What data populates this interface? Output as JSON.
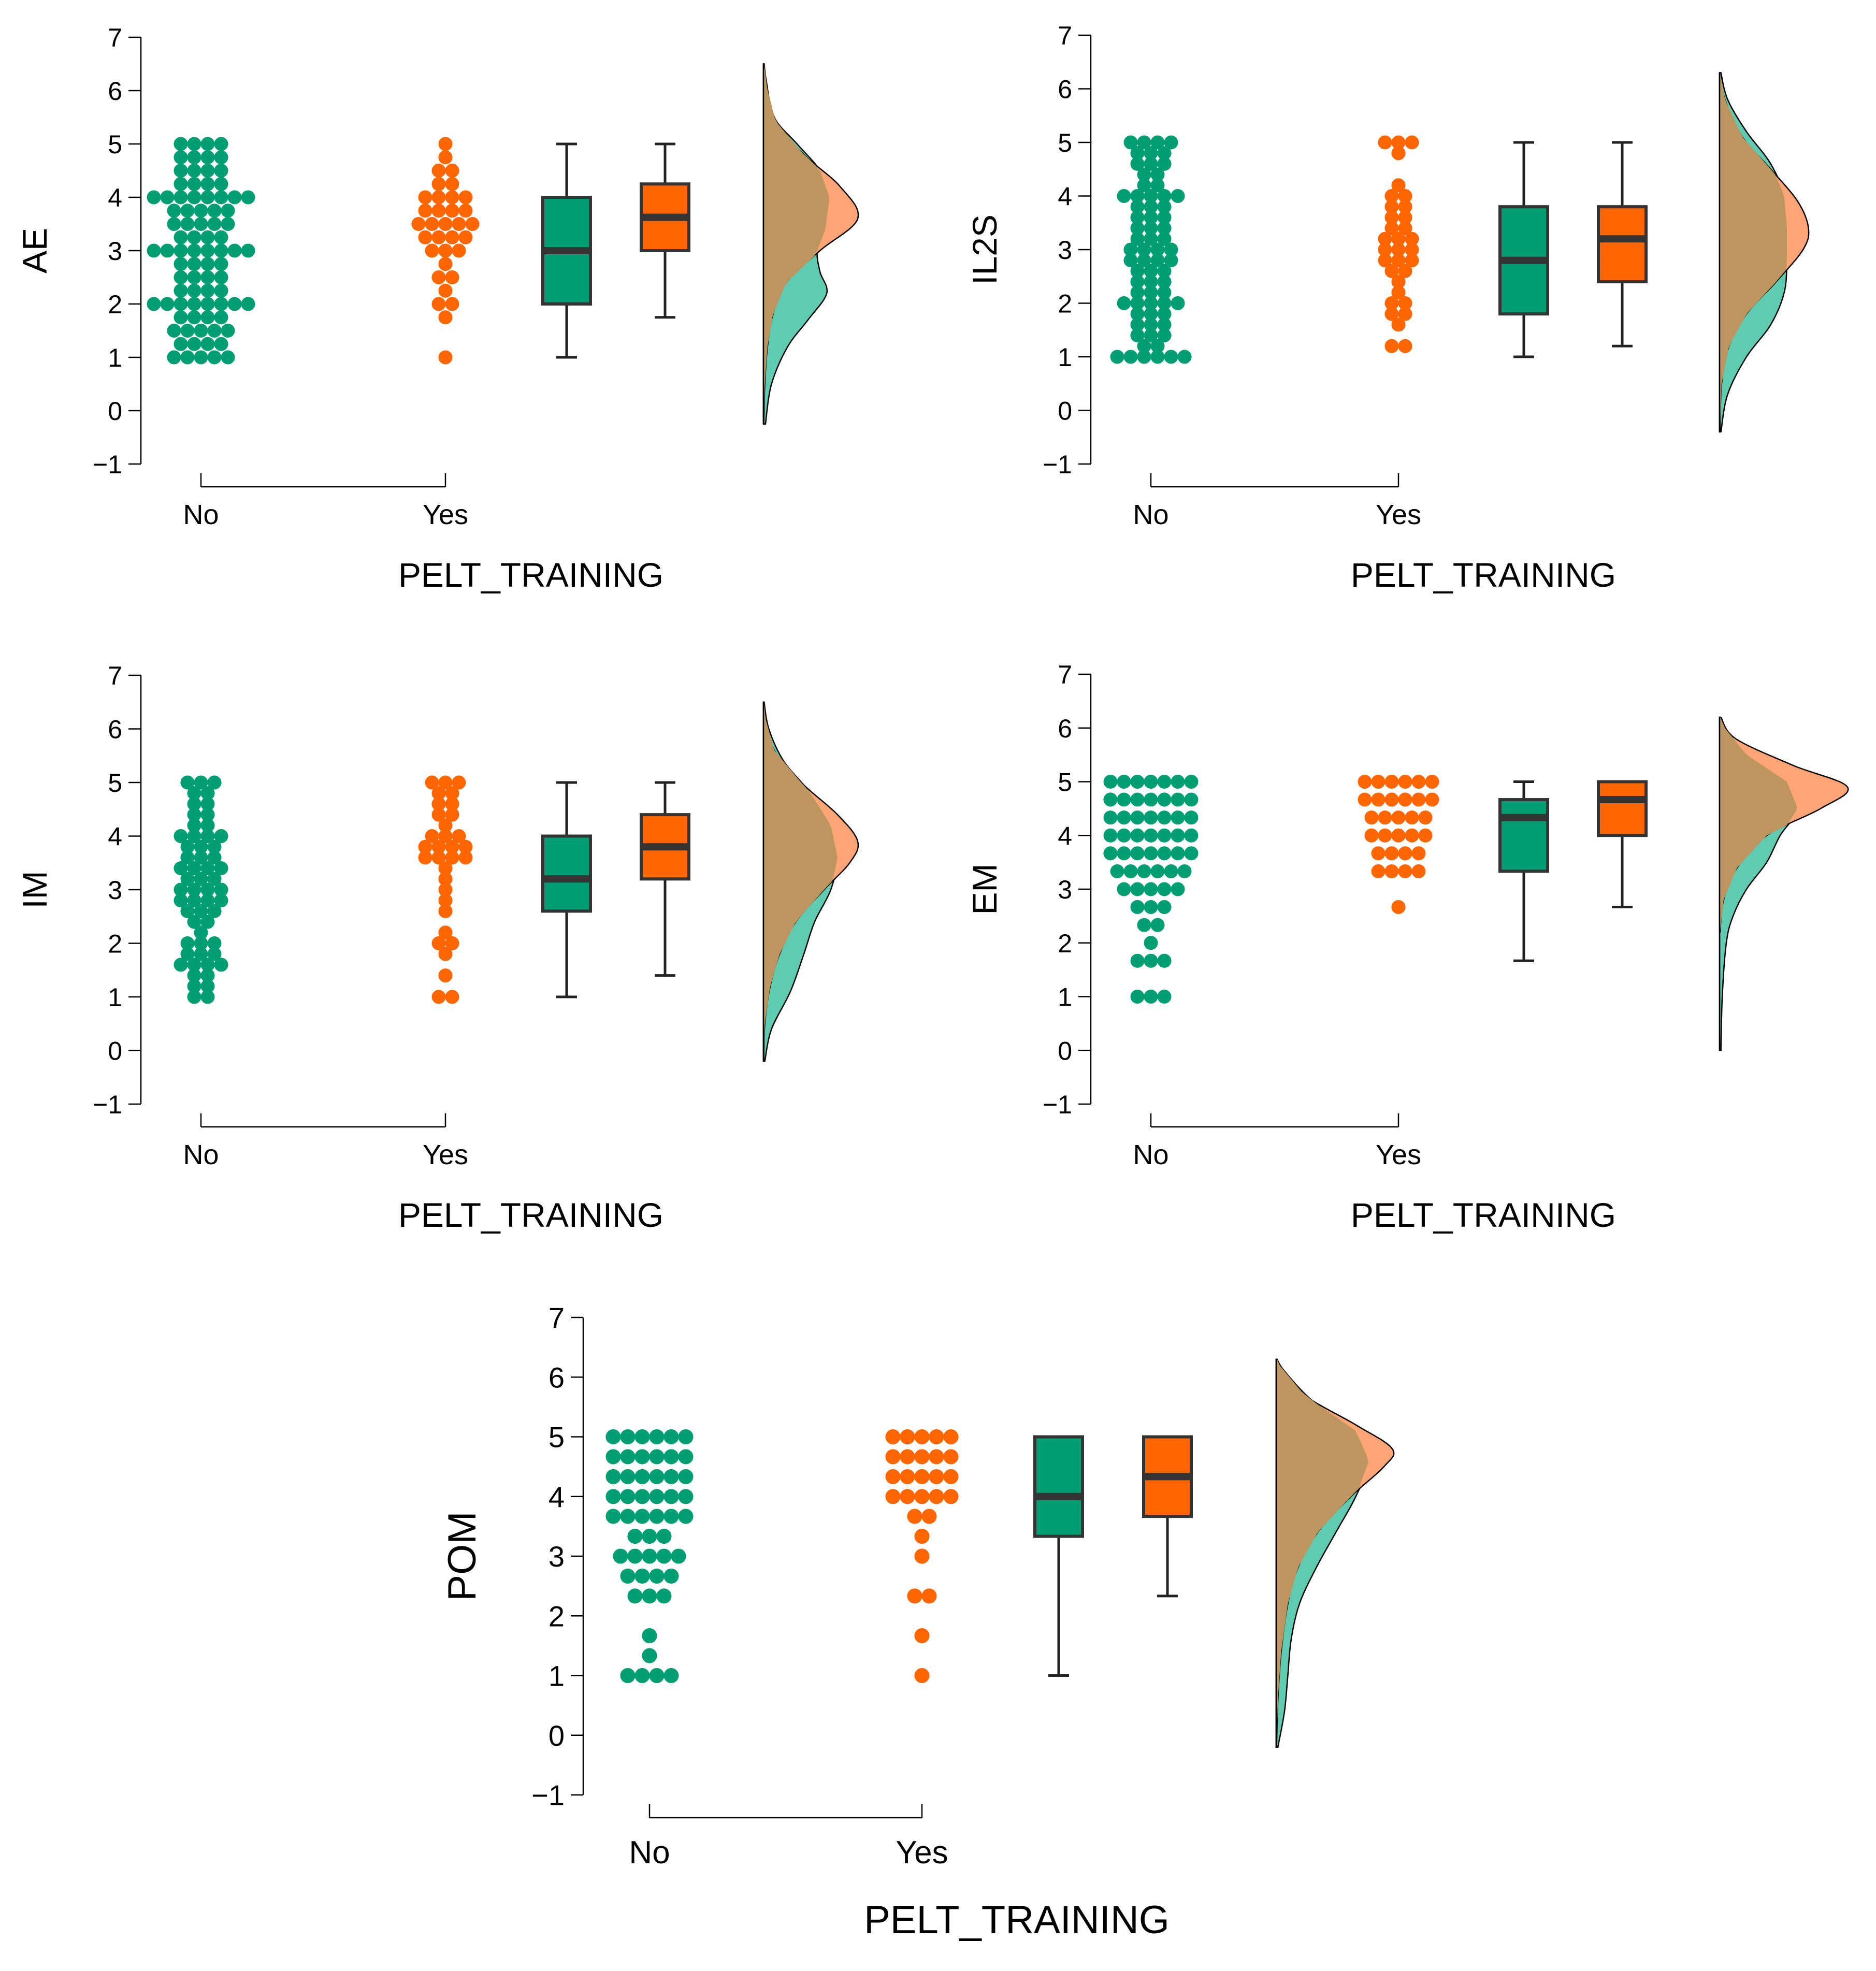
{
  "colors": {
    "no": "#009E73",
    "yes": "#FF6600",
    "no_density": "#5ECBB2",
    "yes_density": "#FFA474",
    "overlap": "#BC965E"
  },
  "chart_data": [
    {
      "type": "raincloud",
      "ylabel": "AE",
      "xlabel": "PELT_TRAINING",
      "categories": [
        "No",
        "Yes"
      ],
      "yticks": [
        -1,
        0,
        1,
        2,
        3,
        4,
        5,
        6,
        7
      ],
      "ylim": [
        -1,
        7
      ],
      "series": [
        {
          "name": "No",
          "points": [
            1,
            1,
            1,
            1,
            1,
            1.25,
            1.25,
            1.25,
            1.25,
            1.5,
            1.5,
            1.5,
            1.5,
            1.5,
            1.75,
            1.75,
            1.75,
            1.75,
            2,
            2,
            2,
            2,
            2,
            2,
            2,
            2,
            2.25,
            2.25,
            2.25,
            2.25,
            2.5,
            2.5,
            2.5,
            2.5,
            2.75,
            2.75,
            2.75,
            2.75,
            3,
            3,
            3,
            3,
            3,
            3,
            3,
            3,
            3.25,
            3.25,
            3.25,
            3.25,
            3.5,
            3.5,
            3.5,
            3.5,
            3.5,
            3.75,
            3.75,
            3.75,
            3.75,
            3.75,
            4,
            4,
            4,
            4,
            4,
            4,
            4,
            4,
            4.25,
            4.25,
            4.25,
            4.25,
            4.5,
            4.5,
            4.5,
            4.5,
            4.75,
            4.75,
            4.75,
            4.75,
            5,
            5,
            5,
            5
          ],
          "box": {
            "min": 1,
            "q1": 2,
            "median": 3,
            "q3": 4,
            "max": 5
          }
        },
        {
          "name": "Yes",
          "points": [
            1,
            1.75,
            2,
            2,
            2.25,
            2.5,
            2.5,
            2.75,
            3,
            3,
            3,
            3.25,
            3.25,
            3.25,
            3.25,
            3.5,
            3.5,
            3.5,
            3.5,
            3.5,
            3.75,
            3.75,
            3.75,
            3.75,
            4,
            4,
            4,
            4,
            4.25,
            4.25,
            4.5,
            4.5,
            4.75,
            5
          ],
          "box": {
            "min": 1.75,
            "q1": 3,
            "median": 3.625,
            "q3": 4.25,
            "max": 5
          }
        }
      ],
      "density": {
        "no": [
          [
            -0.25,
            0.015
          ],
          [
            0.5,
            0.06
          ],
          [
            1.2,
            0.18
          ],
          [
            1.7,
            0.33
          ],
          [
            2.2,
            0.47
          ],
          [
            2.6,
            0.42
          ],
          [
            3.0,
            0.4
          ],
          [
            3.4,
            0.46
          ],
          [
            4.0,
            0.49
          ],
          [
            4.5,
            0.42
          ],
          [
            5.0,
            0.25
          ],
          [
            5.5,
            0.08
          ],
          [
            6.2,
            0.02
          ],
          [
            6.5,
            0.004
          ]
        ],
        "yes": [
          [
            -0.25,
            0.002
          ],
          [
            0.5,
            0.01
          ],
          [
            1.2,
            0.03
          ],
          [
            1.8,
            0.07
          ],
          [
            2.4,
            0.17
          ],
          [
            3.0,
            0.42
          ],
          [
            3.6,
            0.7
          ],
          [
            4.2,
            0.57
          ],
          [
            4.8,
            0.3
          ],
          [
            5.4,
            0.1
          ],
          [
            6.0,
            0.03
          ],
          [
            6.5,
            0.005
          ]
        ]
      }
    },
    {
      "type": "raincloud",
      "ylabel": "IL2S",
      "xlabel": "PELT_TRAINING",
      "categories": [
        "No",
        "Yes"
      ],
      "yticks": [
        -1,
        0,
        1,
        2,
        3,
        4,
        5,
        6,
        7
      ],
      "ylim": [
        -1,
        7
      ],
      "series": [
        {
          "name": "No",
          "points": [
            1,
            1,
            1,
            1,
            1,
            1,
            1.2,
            1.2,
            1.4,
            1.4,
            1.4,
            1.6,
            1.6,
            1.6,
            1.8,
            1.8,
            1.8,
            2,
            2,
            2,
            2,
            2,
            2.2,
            2.2,
            2.2,
            2.4,
            2.4,
            2.4,
            2.6,
            2.6,
            2.6,
            2.8,
            2.8,
            2.8,
            2.8,
            3,
            3,
            3,
            3,
            3.2,
            3.2,
            3.2,
            3.4,
            3.4,
            3.4,
            3.6,
            3.6,
            3.6,
            3.8,
            3.8,
            3.8,
            4,
            4,
            4,
            4,
            4,
            4.2,
            4.2,
            4.4,
            4.4,
            4.6,
            4.6,
            4.6,
            4.8,
            4.8,
            4.8,
            5,
            5,
            5,
            5
          ],
          "box": {
            "min": 1,
            "q1": 1.8,
            "median": 2.8,
            "q3": 3.8,
            "max": 5
          }
        },
        {
          "name": "Yes",
          "points": [
            1.2,
            1.2,
            1.6,
            1.8,
            1.8,
            2,
            2,
            2.2,
            2.4,
            2.6,
            2.6,
            2.8,
            2.8,
            2.8,
            3,
            3,
            3,
            3.2,
            3.2,
            3.2,
            3.4,
            3.4,
            3.6,
            3.6,
            3.8,
            3.8,
            4,
            4,
            4.2,
            4.8,
            5,
            5,
            5
          ],
          "box": {
            "min": 1.2,
            "q1": 2.4,
            "median": 3.2,
            "q3": 3.8,
            "max": 5
          }
        }
      ],
      "density": {
        "no": [
          [
            -0.4,
            0.01
          ],
          [
            0.3,
            0.06
          ],
          [
            1.0,
            0.2
          ],
          [
            1.6,
            0.38
          ],
          [
            2.2,
            0.48
          ],
          [
            2.8,
            0.5
          ],
          [
            3.4,
            0.5
          ],
          [
            4.0,
            0.48
          ],
          [
            4.6,
            0.38
          ],
          [
            5.2,
            0.2
          ],
          [
            5.8,
            0.06
          ],
          [
            6.3,
            0.01
          ]
        ],
        "yes": [
          [
            -0.4,
            0.003
          ],
          [
            0.5,
            0.015
          ],
          [
            1.2,
            0.07
          ],
          [
            1.8,
            0.2
          ],
          [
            2.4,
            0.42
          ],
          [
            3.0,
            0.62
          ],
          [
            3.4,
            0.66
          ],
          [
            3.9,
            0.58
          ],
          [
            4.5,
            0.38
          ],
          [
            5.1,
            0.17
          ],
          [
            5.8,
            0.04
          ],
          [
            6.3,
            0.005
          ]
        ]
      }
    },
    {
      "type": "raincloud",
      "ylabel": "IM",
      "xlabel": "PELT_TRAINING",
      "categories": [
        "No",
        "Yes"
      ],
      "yticks": [
        -1,
        0,
        1,
        2,
        3,
        4,
        5,
        6,
        7
      ],
      "ylim": [
        -1,
        7
      ],
      "series": [
        {
          "name": "No",
          "points": [
            1,
            1,
            1.2,
            1.2,
            1.4,
            1.4,
            1.6,
            1.6,
            1.6,
            1.6,
            1.8,
            1.8,
            1.8,
            2,
            2,
            2,
            2.2,
            2.4,
            2.4,
            2.6,
            2.6,
            2.6,
            2.8,
            2.8,
            2.8,
            2.8,
            3,
            3,
            3,
            3,
            3.2,
            3.2,
            3.2,
            3.4,
            3.4,
            3.4,
            3.4,
            3.6,
            3.6,
            3.6,
            3.8,
            3.8,
            3.8,
            4,
            4,
            4,
            4,
            4.2,
            4.2,
            4.4,
            4.4,
            4.6,
            4.6,
            4.8,
            4.8,
            5,
            5,
            5
          ],
          "box": {
            "min": 1,
            "q1": 2.6,
            "median": 3.2,
            "q3": 4,
            "max": 5
          }
        },
        {
          "name": "Yes",
          "points": [
            1,
            1,
            1.4,
            1.8,
            2,
            2,
            2.2,
            2.6,
            2.8,
            3,
            3.2,
            3.4,
            3.6,
            3.6,
            3.6,
            3.6,
            3.8,
            3.8,
            3.8,
            3.8,
            4,
            4,
            4,
            4.2,
            4.4,
            4.4,
            4.6,
            4.6,
            4.8,
            4.8,
            5,
            5,
            5
          ],
          "box": {
            "min": 1.4,
            "q1": 3.2,
            "median": 3.8,
            "q3": 4.4,
            "max": 5
          }
        }
      ],
      "density": {
        "no": [
          [
            -0.2,
            0.01
          ],
          [
            0.4,
            0.06
          ],
          [
            1.1,
            0.2
          ],
          [
            1.8,
            0.3
          ],
          [
            2.4,
            0.38
          ],
          [
            3.0,
            0.5
          ],
          [
            3.6,
            0.55
          ],
          [
            4.2,
            0.5
          ],
          [
            4.8,
            0.35
          ],
          [
            5.4,
            0.15
          ],
          [
            6.0,
            0.04
          ],
          [
            6.5,
            0.005
          ]
        ],
        "yes": [
          [
            -0.2,
            0.002
          ],
          [
            0.5,
            0.01
          ],
          [
            1.2,
            0.05
          ],
          [
            1.8,
            0.12
          ],
          [
            2.4,
            0.24
          ],
          [
            3.0,
            0.45
          ],
          [
            3.5,
            0.64
          ],
          [
            3.9,
            0.7
          ],
          [
            4.4,
            0.55
          ],
          [
            5.0,
            0.28
          ],
          [
            5.6,
            0.08
          ],
          [
            6.2,
            0.015
          ],
          [
            6.5,
            0.004
          ]
        ]
      }
    },
    {
      "type": "raincloud",
      "ylabel": "EM",
      "xlabel": "PELT_TRAINING",
      "categories": [
        "No",
        "Yes"
      ],
      "yticks": [
        -1,
        0,
        1,
        2,
        3,
        4,
        5,
        6,
        7
      ],
      "ylim": [
        -1,
        7
      ],
      "series": [
        {
          "name": "No",
          "points": [
            1,
            1,
            1,
            1.667,
            1.667,
            1.667,
            2,
            2.333,
            2.333,
            2.667,
            2.667,
            2.667,
            3,
            3,
            3,
            3,
            3,
            3.333,
            3.333,
            3.333,
            3.333,
            3.333,
            3.333,
            3.667,
            3.667,
            3.667,
            3.667,
            3.667,
            3.667,
            3.667,
            4,
            4,
            4,
            4,
            4,
            4,
            4,
            4.333,
            4.333,
            4.333,
            4.333,
            4.333,
            4.333,
            4.333,
            4.667,
            4.667,
            4.667,
            4.667,
            4.667,
            4.667,
            4.667,
            5,
            5,
            5,
            5,
            5,
            5,
            5
          ],
          "box": {
            "min": 1.667,
            "q1": 3.333,
            "median": 4.333,
            "q3": 4.667,
            "max": 5
          }
        },
        {
          "name": "Yes",
          "points": [
            2.667,
            3.333,
            3.333,
            3.333,
            3.333,
            3.667,
            3.667,
            3.667,
            3.667,
            4,
            4,
            4,
            4,
            4,
            4.333,
            4.333,
            4.333,
            4.333,
            4.333,
            4.667,
            4.667,
            4.667,
            4.667,
            4.667,
            4.667,
            5,
            5,
            5,
            5,
            5,
            5
          ],
          "box": {
            "min": 2.667,
            "q1": 4,
            "median": 4.667,
            "q3": 5,
            "max": 5
          }
        }
      ],
      "density": {
        "no": [
          [
            0,
            0.01
          ],
          [
            1.0,
            0.02
          ],
          [
            2.0,
            0.05
          ],
          [
            2.5,
            0.1
          ],
          [
            3.0,
            0.2
          ],
          [
            3.5,
            0.35
          ],
          [
            4.0,
            0.45
          ],
          [
            4.5,
            0.58
          ],
          [
            5.0,
            0.5
          ],
          [
            5.5,
            0.2
          ],
          [
            6.0,
            0.04
          ],
          [
            6.2,
            0.005
          ]
        ],
        "yes": [
          [
            2.2,
            0.003
          ],
          [
            2.8,
            0.03
          ],
          [
            3.4,
            0.13
          ],
          [
            4.0,
            0.35
          ],
          [
            4.5,
            0.75
          ],
          [
            4.9,
            0.95
          ],
          [
            5.3,
            0.55
          ],
          [
            5.8,
            0.12
          ],
          [
            6.2,
            0.01
          ]
        ]
      }
    },
    {
      "type": "raincloud",
      "ylabel": "POM",
      "xlabel": "PELT_TRAINING",
      "categories": [
        "No",
        "Yes"
      ],
      "yticks": [
        -1,
        0,
        1,
        2,
        3,
        4,
        5,
        6,
        7
      ],
      "ylim": [
        -1,
        7
      ],
      "series": [
        {
          "name": "No",
          "points": [
            1,
            1,
            1,
            1,
            1.333,
            1.667,
            2.333,
            2.333,
            2.333,
            2.667,
            2.667,
            2.667,
            2.667,
            3,
            3,
            3,
            3,
            3,
            3.333,
            3.333,
            3.333,
            3.667,
            3.667,
            3.667,
            3.667,
            3.667,
            3.667,
            4,
            4,
            4,
            4,
            4,
            4,
            4.333,
            4.333,
            4.333,
            4.333,
            4.333,
            4.333,
            4.667,
            4.667,
            4.667,
            4.667,
            4.667,
            4.667,
            5,
            5,
            5,
            5,
            5,
            5
          ],
          "box": {
            "min": 1,
            "q1": 3.333,
            "median": 4,
            "q3": 5,
            "max": 5
          }
        },
        {
          "name": "Yes",
          "points": [
            1,
            1.667,
            2.333,
            2.333,
            3,
            3.333,
            3.667,
            3.667,
            4,
            4,
            4,
            4,
            4,
            4.333,
            4.333,
            4.333,
            4.333,
            4.333,
            4.667,
            4.667,
            4.667,
            4.667,
            4.667,
            5,
            5,
            5,
            5,
            5
          ],
          "box": {
            "min": 2.333,
            "q1": 3.667,
            "median": 4.333,
            "q3": 5,
            "max": 5
          }
        }
      ],
      "density": {
        "no": [
          [
            -0.2,
            0.01
          ],
          [
            0.4,
            0.05
          ],
          [
            1.0,
            0.07
          ],
          [
            1.6,
            0.09
          ],
          [
            2.2,
            0.14
          ],
          [
            2.8,
            0.24
          ],
          [
            3.4,
            0.36
          ],
          [
            4.0,
            0.48
          ],
          [
            4.6,
            0.56
          ],
          [
            5.1,
            0.48
          ],
          [
            5.6,
            0.22
          ],
          [
            6.1,
            0.05
          ],
          [
            6.3,
            0.005
          ]
        ],
        "yes": [
          [
            -0.2,
            0.002
          ],
          [
            0.6,
            0.01
          ],
          [
            1.4,
            0.03
          ],
          [
            2.2,
            0.07
          ],
          [
            2.8,
            0.13
          ],
          [
            3.4,
            0.25
          ],
          [
            4.0,
            0.45
          ],
          [
            4.5,
            0.65
          ],
          [
            4.8,
            0.7
          ],
          [
            5.2,
            0.48
          ],
          [
            5.7,
            0.17
          ],
          [
            6.2,
            0.02
          ],
          [
            6.3,
            0.005
          ]
        ]
      }
    }
  ]
}
